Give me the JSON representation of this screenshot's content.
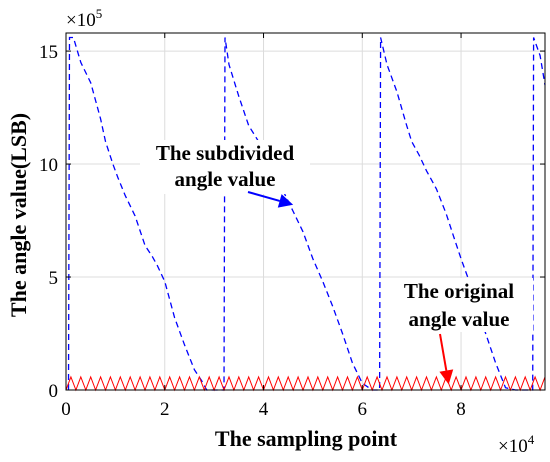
{
  "chart_data": {
    "type": "line",
    "xlabel": "The sampling point",
    "ylabel": "The angle value(LSB)",
    "x_multiplier_base": "×10",
    "x_multiplier_exp": "4",
    "y_multiplier_base": "×10",
    "y_multiplier_exp": "5",
    "xlim": [
      0,
      9.7
    ],
    "ylim": [
      0,
      15.8
    ],
    "x_ticks": [
      0,
      2,
      4,
      6,
      8
    ],
    "y_ticks": [
      0,
      5,
      10,
      15
    ],
    "grid": true,
    "legend": "none",
    "series": [
      {
        "style": "dashed",
        "color": "#0000ff",
        "x": [
          0.05,
          0.07,
          0.15,
          0.3,
          0.5,
          0.7,
          0.8,
          0.95,
          1.05,
          1.2,
          1.4,
          1.6,
          1.75,
          1.85,
          2.0,
          2.1,
          2.2,
          2.4,
          2.6,
          2.75,
          2.85,
          3.0,
          3.1,
          3.2,
          3.22,
          3.3,
          3.5,
          3.7,
          3.9,
          4.05,
          4.2,
          4.4,
          4.6,
          4.8,
          5.0,
          5.2,
          5.4,
          5.6,
          5.8,
          6.0,
          6.2,
          6.35,
          6.37,
          6.5,
          6.7,
          6.9,
          7.0,
          7.15,
          7.3,
          7.5,
          7.7,
          7.85,
          8.0,
          8.15,
          8.3,
          8.5,
          8.7,
          8.9,
          9.1,
          9.3,
          9.45,
          9.47,
          9.6,
          9.7
        ],
        "y": [
          0.0,
          15.6,
          15.6,
          14.5,
          13.6,
          12.0,
          11.0,
          10.0,
          9.4,
          8.6,
          7.7,
          6.4,
          5.9,
          5.5,
          4.8,
          4.0,
          3.2,
          2.0,
          0.9,
          0.4,
          0.0,
          0.0,
          0.0,
          0.0,
          15.6,
          14.4,
          13.0,
          11.7,
          11.0,
          10.2,
          9.6,
          8.8,
          7.9,
          7.0,
          5.8,
          4.8,
          3.7,
          2.5,
          1.2,
          0.3,
          0.0,
          0.0,
          15.6,
          14.4,
          13.2,
          11.7,
          11.0,
          10.4,
          9.7,
          8.9,
          7.8,
          6.8,
          5.8,
          4.9,
          3.7,
          2.5,
          1.2,
          0.1,
          0.0,
          0.0,
          0.0,
          15.6,
          14.8,
          13.5
        ]
      },
      {
        "style": "solid",
        "color": "#ff0000",
        "pattern": "sawtooth",
        "y_min": 0.0,
        "y_max": 0.58,
        "x_start": 0.0,
        "x_end": 9.7,
        "period": 0.2
      }
    ],
    "annotations": [
      {
        "line1": "The subdivided",
        "line2": "angle value",
        "arrow_color": "#0000ff",
        "arrow_to": [
          4.6,
          8.2
        ]
      },
      {
        "line1": "The original",
        "line2": "angle value",
        "arrow_color": "#ff0000",
        "arrow_to": [
          7.75,
          0.25
        ]
      }
    ]
  }
}
